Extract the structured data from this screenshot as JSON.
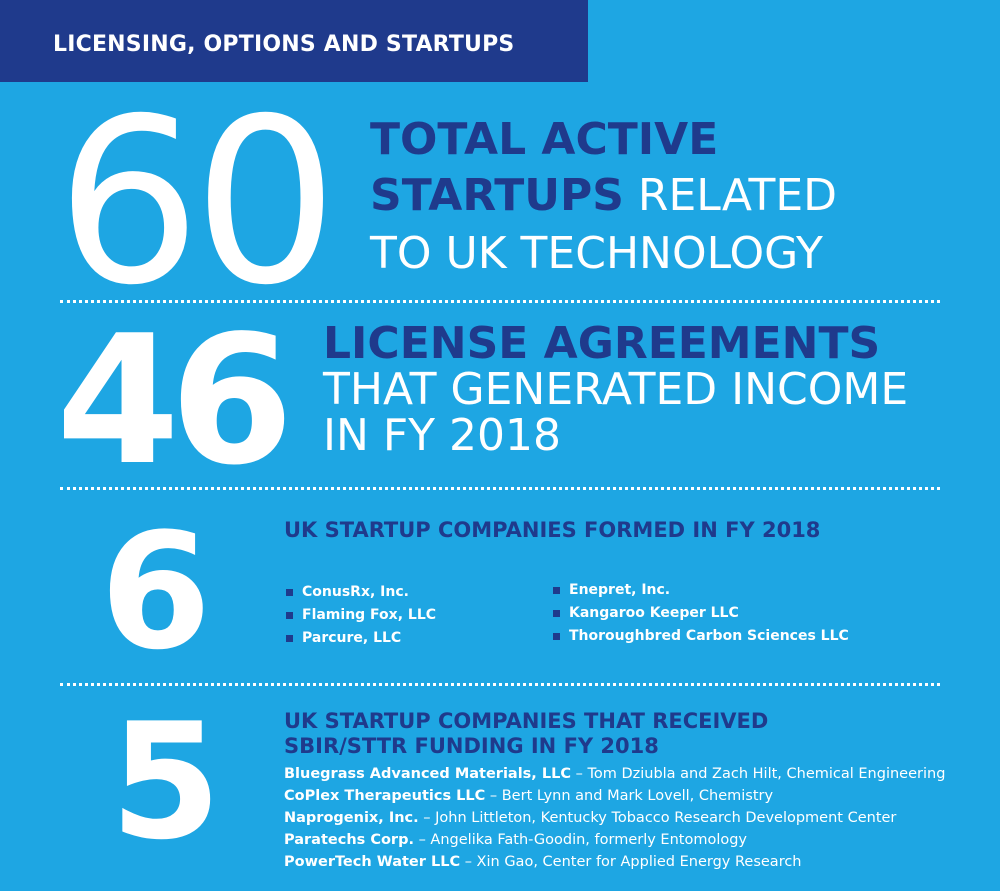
{
  "header": {
    "title": "LICENSING, OPTIONS AND STARTUPS"
  },
  "stats": [
    {
      "number": "60",
      "lines": [
        {
          "bold": "TOTAL ACTIVE",
          "light": ""
        },
        {
          "bold": "STARTUPS",
          "light": " RELATED"
        },
        {
          "bold": "",
          "light": "TO UK TECHNOLOGY"
        }
      ]
    },
    {
      "number": "46",
      "lines": [
        "LICENSE AGREEMENTS",
        "THAT GENERATED INCOME",
        "IN FY 2018"
      ]
    },
    {
      "number": "6",
      "heading": "UK STARTUP COMPANIES FORMED IN FY 2018"
    },
    {
      "number": "5",
      "heading_lines": [
        "UK STARTUP COMPANIES THAT RECEIVED",
        "SBIR/STTR FUNDING IN FY 2018"
      ]
    }
  ],
  "startups_formed": {
    "column1": [
      "ConusRx, Inc.",
      "Flaming Fox, LLC",
      "Parcure, LLC"
    ],
    "column2": [
      "Enepret, Inc.",
      "Kangaroo Keeper LLC",
      "Thoroughbred Carbon Sciences LLC"
    ]
  },
  "funding": [
    {
      "company": "Bluegrass Advanced Materials, LLC",
      "detail": " – Tom Dziubla and Zach Hilt, Chemical Engineering"
    },
    {
      "company": "CoPlex Therapeutics LLC",
      "detail": " – Bert Lynn and Mark Lovell, Chemistry"
    },
    {
      "company": "Naprogenix, Inc.",
      "detail": " – John Littleton, Kentucky Tobacco Research Development Center"
    },
    {
      "company": "Paratechs Corp.",
      "detail": " – Angelika Fath-Goodin, formerly Entomology"
    },
    {
      "company": "PowerTech Water LLC",
      "detail": " – Xin Gao, Center for Applied Energy Research"
    }
  ],
  "colors": {
    "background": "#1ea6e3",
    "navy": "#1f3a8c",
    "white": "#ffffff"
  }
}
